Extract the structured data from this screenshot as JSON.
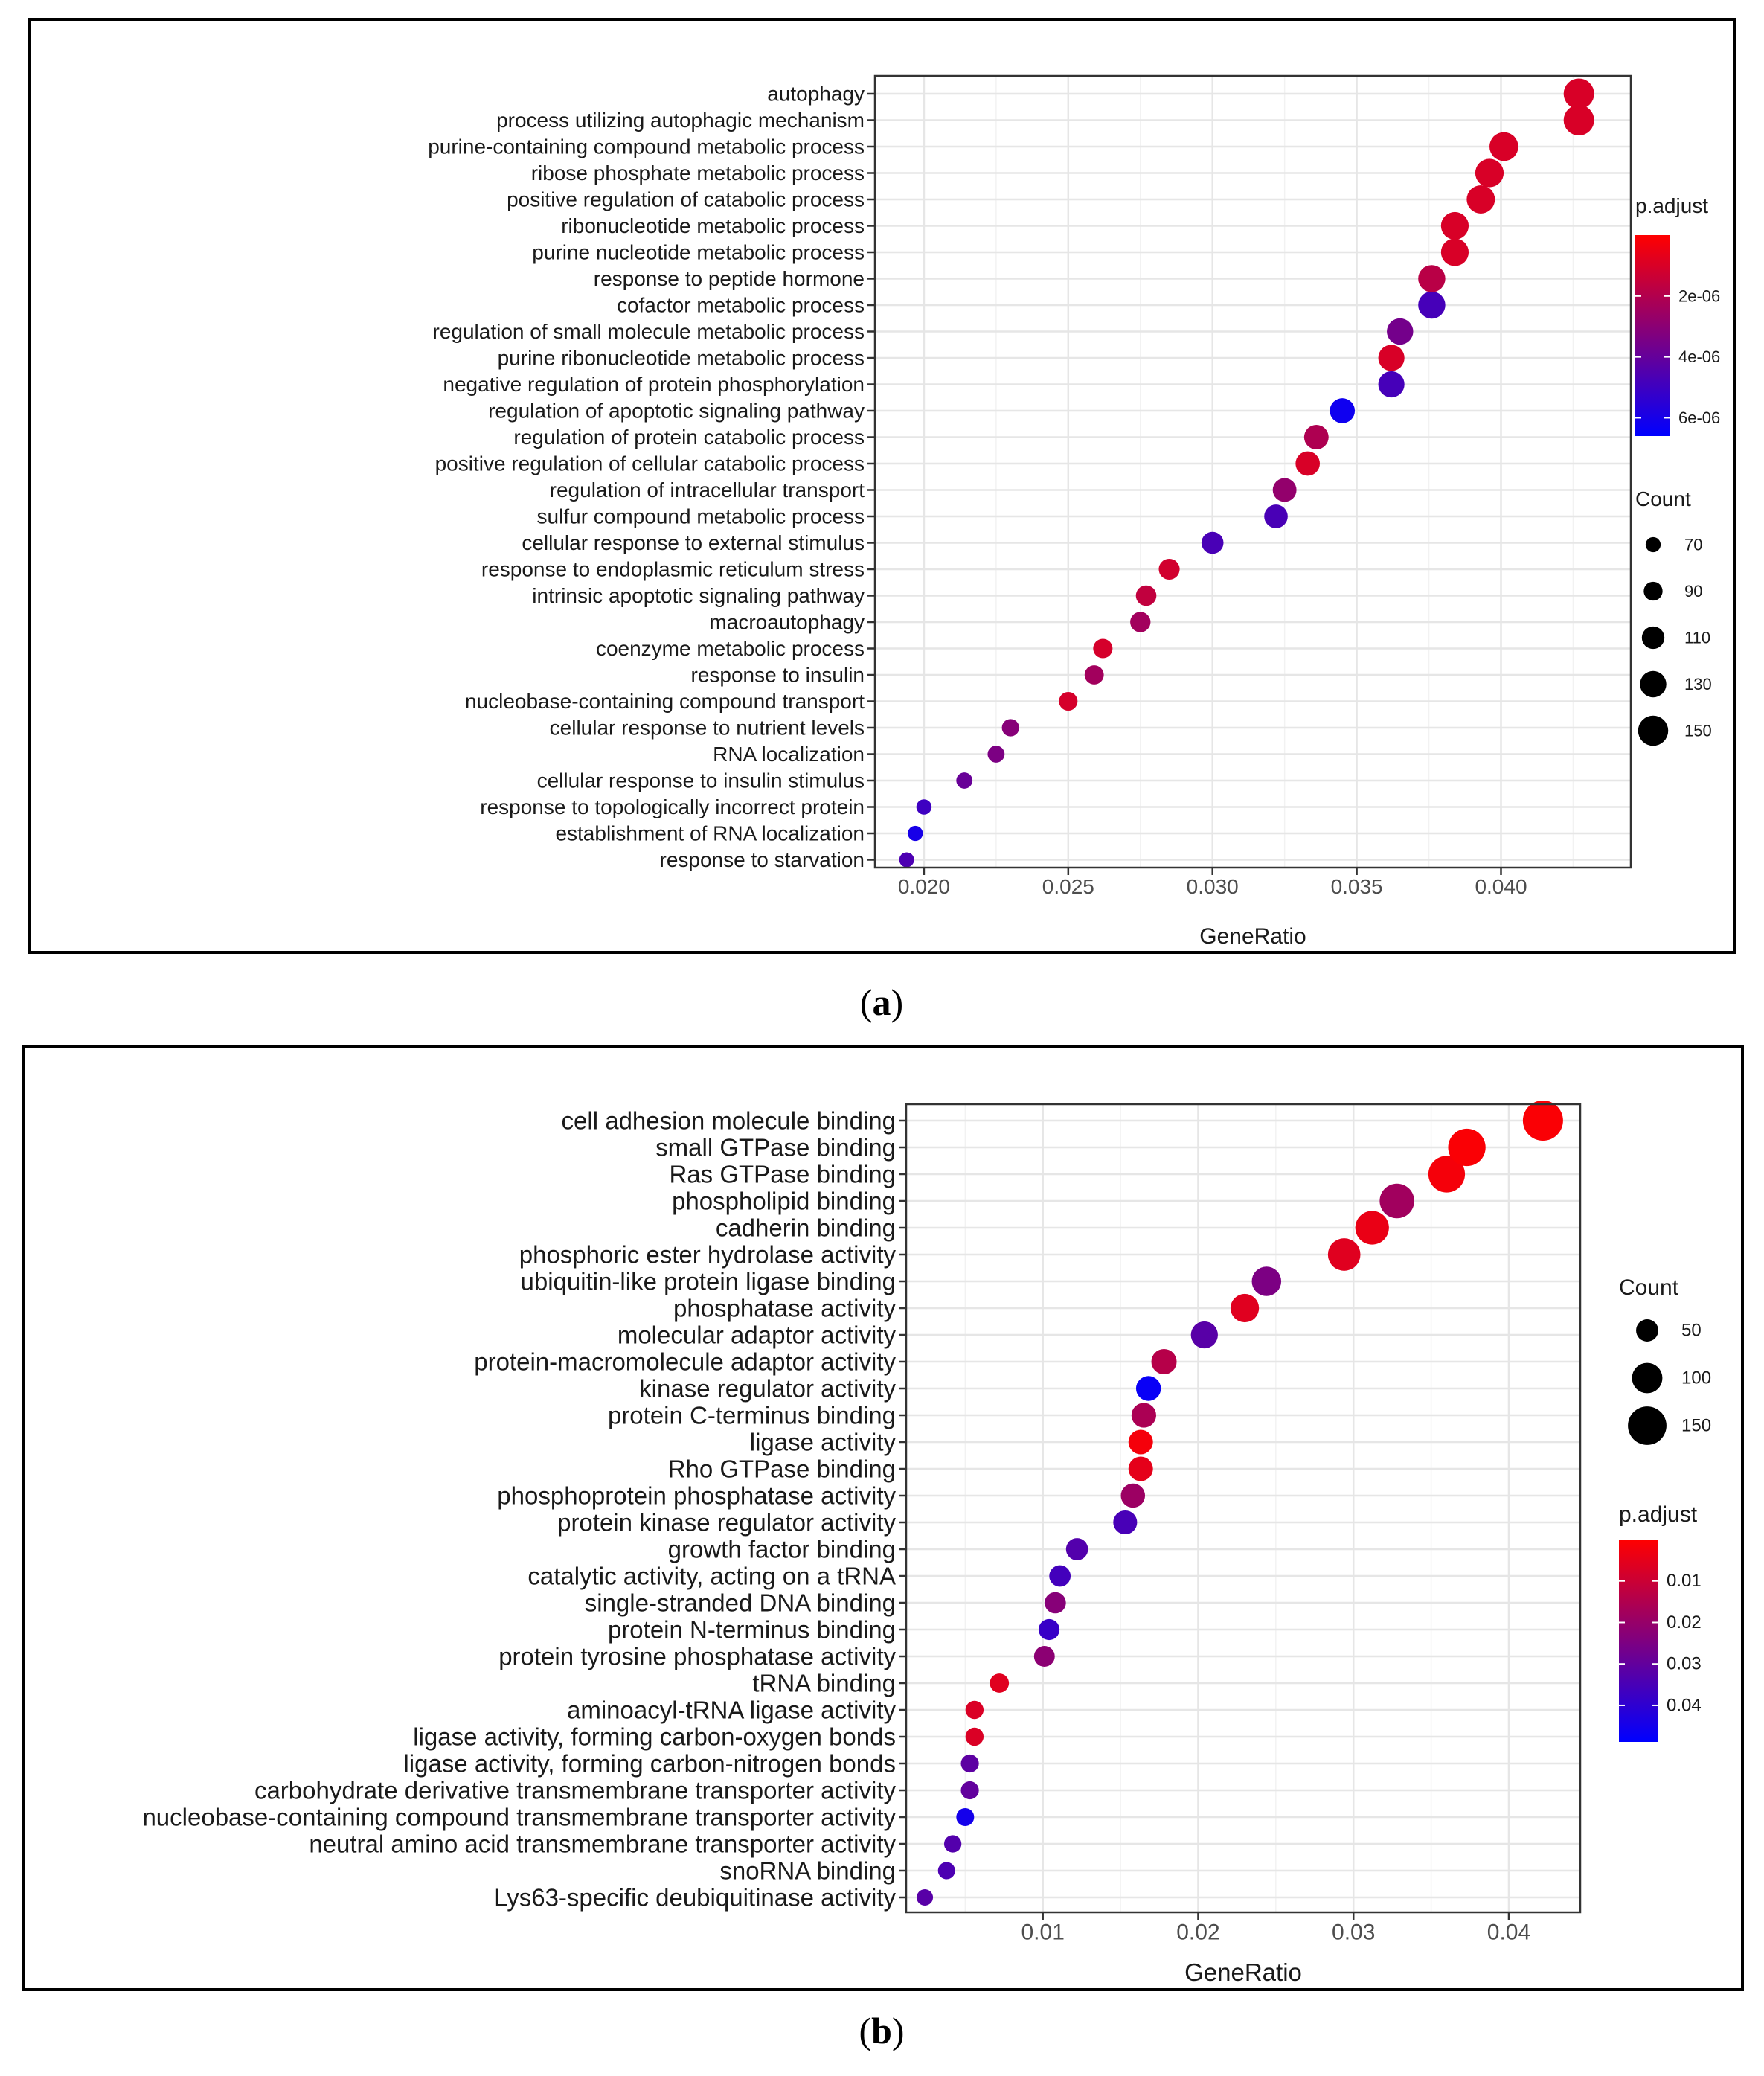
{
  "chart_data": [
    {
      "type": "scatter",
      "panel_label": "a",
      "xlabel": "GeneRatio",
      "xlim": [
        0.0183,
        0.0445
      ],
      "xticks": [
        0.02,
        0.025,
        0.03,
        0.035,
        0.04
      ],
      "xtick_labels": [
        "0.020",
        "0.025",
        "0.030",
        "0.035",
        "0.040"
      ],
      "color_legend": {
        "title": "p.adjust",
        "min": 0,
        "max": 6.6e-06,
        "ticks": [
          2e-06,
          4e-06,
          6e-06
        ],
        "tick_labels": [
          "2e-06",
          "4e-06",
          "6e-06"
        ],
        "colors": [
          "#ff0000",
          "#0000ff"
        ]
      },
      "size_legend": {
        "title": "Count",
        "values": [
          70,
          90,
          110,
          130,
          150
        ],
        "labels": [
          "70",
          "90",
          "110",
          "130",
          "150"
        ]
      },
      "categories": [
        "autophagy",
        "process utilizing autophagic mechanism",
        "purine-containing compound metabolic process",
        "ribose phosphate metabolic process",
        "positive regulation of catabolic process",
        "ribonucleotide metabolic process",
        "purine nucleotide metabolic process",
        "response to peptide hormone",
        "cofactor metabolic process",
        "regulation of small molecule metabolic process",
        "purine ribonucleotide metabolic process",
        "negative regulation of protein phosphorylation",
        "regulation of apoptotic signaling pathway",
        "regulation of protein catabolic process",
        "positive regulation of cellular catabolic process",
        "regulation of intracellular transport",
        "sulfur compound metabolic process",
        "cellular response to external stimulus",
        "response to endoplasmic reticulum stress",
        "intrinsic apoptotic signaling pathway",
        "macroautophagy",
        "coenzyme metabolic process",
        "response to insulin",
        "nucleobase-containing compound transport",
        "cellular response to nutrient levels",
        "RNA localization",
        "cellular response to insulin stimulus",
        "response to topologically incorrect protein",
        "establishment of RNA localization",
        "response to starvation"
      ],
      "gene_ratio": [
        0.0427,
        0.0427,
        0.0401,
        0.0396,
        0.0393,
        0.0384,
        0.0384,
        0.0376,
        0.0376,
        0.0365,
        0.0362,
        0.0362,
        0.0345,
        0.0336,
        0.0333,
        0.0325,
        0.0322,
        0.03,
        0.0285,
        0.0277,
        0.0275,
        0.0262,
        0.0259,
        0.025,
        0.023,
        0.0225,
        0.0214,
        0.02,
        0.0197,
        0.0194
      ],
      "count": [
        152,
        152,
        143,
        141,
        140,
        137,
        137,
        134,
        134,
        130,
        129,
        129,
        123,
        120,
        119,
        116,
        115,
        107,
        101,
        99,
        98,
        93,
        92,
        89,
        82,
        80,
        76,
        71,
        70,
        69
      ],
      "p_adjust": [
        1e-06,
        1e-06,
        1e-06,
        1e-06,
        1e-06,
        1e-06,
        1e-06,
        1.8e-06,
        4.8e-06,
        3.6e-06,
        1e-06,
        4.8e-06,
        6.2e-06,
        2.1e-06,
        1e-06,
        2.8e-06,
        4.7e-06,
        4.7e-06,
        1.2e-06,
        1.6e-06,
        2.4e-06,
        1.1e-06,
        2.4e-06,
        1.1e-06,
        3.1e-06,
        3.4e-06,
        3.9e-06,
        5e-06,
        6e-06,
        4.6e-06
      ]
    },
    {
      "type": "scatter",
      "panel_label": "b",
      "xlabel": "GeneRatio",
      "xlim": [
        0.0012,
        0.0446
      ],
      "xticks": [
        0.01,
        0.02,
        0.03,
        0.04
      ],
      "xtick_labels": [
        "0.01",
        "0.02",
        "0.03",
        "0.04"
      ],
      "color_legend": {
        "title": "p.adjust",
        "min": 0.0,
        "max": 0.0488,
        "ticks": [
          0.01,
          0.02,
          0.03,
          0.04
        ],
        "tick_labels": [
          "0.01",
          "0.02",
          "0.03",
          "0.04"
        ],
        "colors": [
          "#ff0000",
          "#0000ff"
        ]
      },
      "size_legend": {
        "title": "Count",
        "values": [
          50,
          100,
          150
        ],
        "labels": [
          "50",
          "100",
          "150"
        ]
      },
      "categories": [
        "cell adhesion molecule binding",
        "small GTPase binding",
        "Ras GTPase binding",
        "phospholipid binding",
        "cadherin binding",
        "phosphoric ester hydrolase activity",
        "ubiquitin-like protein ligase binding",
        "phosphatase activity",
        "molecular adaptor activity",
        "protein-macromolecule adaptor activity",
        "kinase regulator activity",
        "protein C-terminus binding",
        "ligase activity",
        "Rho GTPase binding",
        "phosphoprotein phosphatase activity",
        "protein kinase regulator activity",
        "growth factor binding",
        "catalytic activity, acting on a tRNA",
        "single-stranded DNA binding",
        "protein N-terminus binding",
        "protein tyrosine phosphatase activity",
        "tRNA binding",
        "aminoacyl-tRNA ligase activity",
        "ligase activity, forming carbon-oxygen bonds",
        "ligase activity, forming carbon-nitrogen bonds",
        "carbohydrate derivative transmembrane transporter activity",
        "nucleobase-containing compound transmembrane transporter activity",
        "neutral amino acid transmembrane transporter activity",
        "snoRNA binding",
        "Lys63-specific deubiquitinase activity"
      ],
      "gene_ratio": [
        0.0422,
        0.0373,
        0.036,
        0.0328,
        0.0312,
        0.0294,
        0.0244,
        0.023,
        0.0204,
        0.0178,
        0.0168,
        0.0165,
        0.0163,
        0.0163,
        0.0158,
        0.0153,
        0.0122,
        0.0111,
        0.0108,
        0.0104,
        0.0101,
        0.0072,
        0.0056,
        0.0056,
        0.0053,
        0.0053,
        0.005,
        0.0042,
        0.0038,
        0.0024
      ],
      "count": [
        160,
        143,
        138,
        126,
        120,
        113,
        94,
        88,
        79,
        69,
        66,
        65,
        64,
        64,
        62,
        60,
        49,
        45,
        44,
        42,
        41,
        31,
        25,
        25,
        24,
        24,
        23,
        20,
        19,
        14
      ],
      "p_adjust": [
        0.001,
        0.001,
        0.002,
        0.018,
        0.004,
        0.006,
        0.025,
        0.006,
        0.032,
        0.014,
        0.047,
        0.016,
        0.002,
        0.005,
        0.019,
        0.035,
        0.033,
        0.036,
        0.023,
        0.038,
        0.022,
        0.006,
        0.007,
        0.007,
        0.031,
        0.03,
        0.045,
        0.033,
        0.034,
        0.032
      ]
    }
  ]
}
